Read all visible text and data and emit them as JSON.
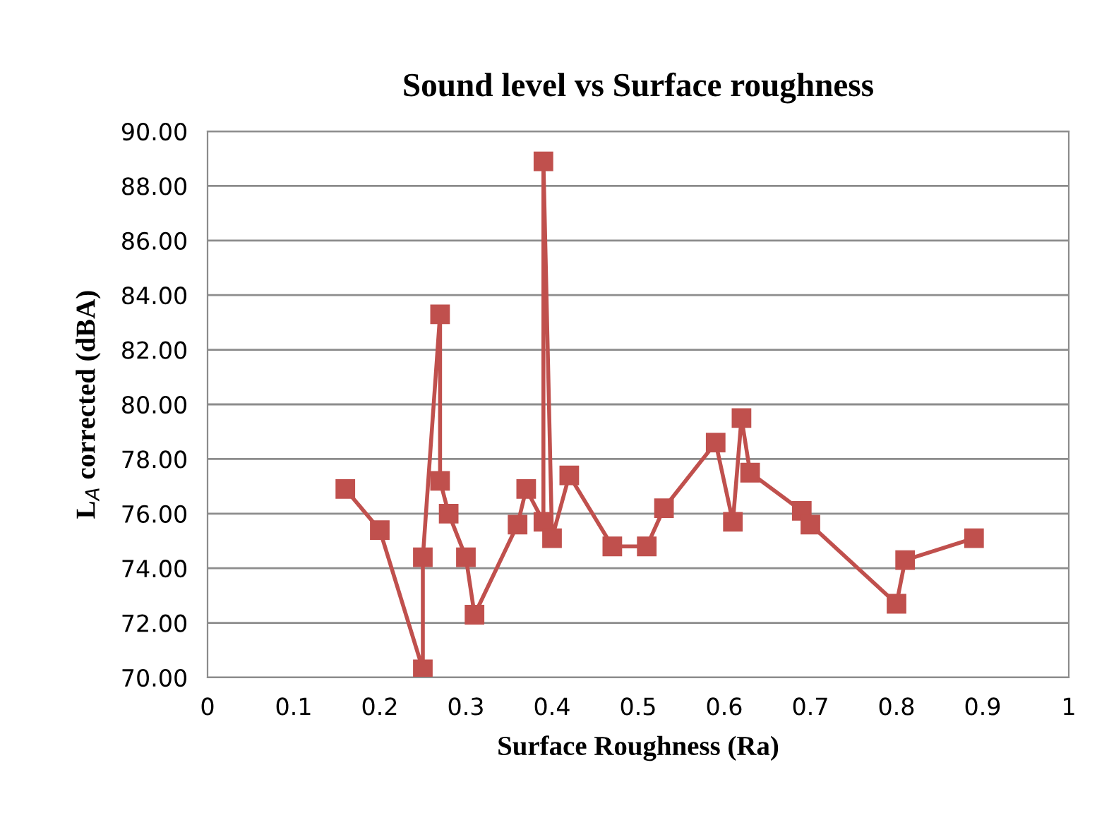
{
  "chart_data": {
    "type": "line",
    "title": "Sound level vs Surface roughness",
    "xlabel": "Surface Roughness (Ra)",
    "ylabel": "L$_{A}$ corrected (dBA)",
    "x": [
      0.16,
      0.2,
      0.25,
      0.25,
      0.27,
      0.27,
      0.28,
      0.3,
      0.31,
      0.36,
      0.37,
      0.39,
      0.39,
      0.4,
      0.42,
      0.47,
      0.51,
      0.53,
      0.59,
      0.61,
      0.62,
      0.63,
      0.69,
      0.7,
      0.8,
      0.81,
      0.89
    ],
    "series": [
      {
        "color": "#c0504d",
        "values": [
          76.9,
          75.4,
          70.3,
          74.4,
          83.3,
          77.2,
          76.0,
          74.4,
          72.3,
          75.6,
          76.9,
          75.7,
          88.9,
          75.1,
          77.4,
          74.8,
          74.8,
          76.2,
          78.6,
          75.7,
          79.5,
          77.5,
          76.1,
          75.6,
          72.7,
          74.3,
          75.1
        ]
      }
    ],
    "xlim": [
      0,
      1
    ],
    "xticks": [
      0,
      0.1,
      0.2,
      0.3,
      0.4,
      0.5,
      0.6,
      0.7,
      0.8,
      0.9,
      1
    ],
    "ylim": [
      70,
      90
    ],
    "yticks": [
      {
        "value": 70,
        "label": "70.00"
      },
      {
        "value": 72,
        "label": "72.00"
      },
      {
        "value": 74,
        "label": "74.00"
      },
      {
        "value": 76,
        "label": "76.00"
      },
      {
        "value": 78,
        "label": "78.00"
      },
      {
        "value": 80,
        "label": "80.00"
      },
      {
        "value": 82,
        "label": "82.00"
      },
      {
        "value": 84,
        "label": "84.00"
      },
      {
        "value": 86,
        "label": "86.00"
      },
      {
        "value": 88,
        "label": "88.00"
      },
      {
        "value": 90,
        "label": "90.00"
      }
    ],
    "grid": "y",
    "marker": "square",
    "line_style": "solid"
  }
}
